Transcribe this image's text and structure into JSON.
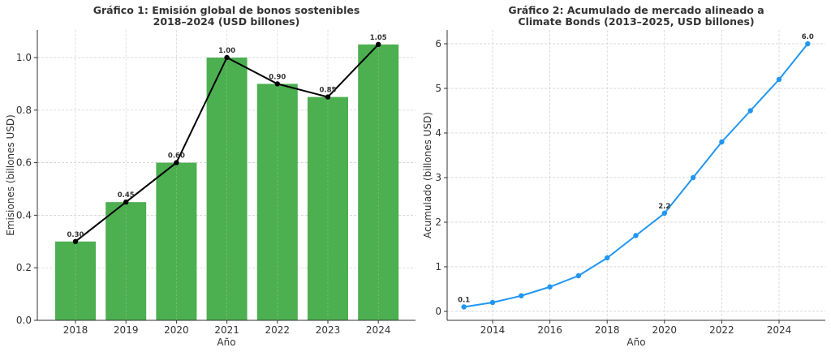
{
  "chart_data": [
    {
      "type": "bar",
      "title": "Gráfico 1: Emisión global de bonos sostenibles\n2018–2024 (USD billones)",
      "title_lines": [
        "Gráfico 1: Emisión global de bonos sostenibles",
        "2018–2024 (USD billones)"
      ],
      "xlabel": "Año",
      "ylabel": "Emisiones (billones USD)",
      "categories": [
        "2018",
        "2019",
        "2020",
        "2021",
        "2022",
        "2023",
        "2024"
      ],
      "values": [
        0.3,
        0.45,
        0.6,
        1.0,
        0.9,
        0.85,
        1.05
      ],
      "data_labels": [
        "0.30",
        "0.45",
        "0.60",
        "1.00",
        "0.90",
        "0.85",
        "1.05"
      ],
      "overlay_line": {
        "type": "line",
        "values": [
          0.3,
          0.45,
          0.6,
          1.0,
          0.9,
          0.85,
          1.05
        ],
        "color": "#000000",
        "marker": "circle"
      },
      "ylim": [
        0,
        1.1
      ],
      "yticks": [
        "0.0",
        "0.2",
        "0.4",
        "0.6",
        "0.8",
        "1.0"
      ],
      "grid": true,
      "bar_color": "#4caf50"
    },
    {
      "type": "line",
      "title": "Gráfico 2: Acumulado de mercado alineado a\nClimate Bonds (2013–2025, USD billones)",
      "title_lines": [
        "Gráfico 2: Acumulado de mercado alineado a",
        "Climate Bonds (2013–2025, USD billones)"
      ],
      "xlabel": "Año",
      "ylabel": "Acumulado (billones USD)",
      "x": [
        2013,
        2014,
        2015,
        2016,
        2017,
        2018,
        2019,
        2020,
        2021,
        2022,
        2023,
        2024,
        2025
      ],
      "values": [
        0.1,
        0.2,
        0.35,
        0.55,
        0.8,
        1.2,
        1.7,
        2.2,
        3.0,
        3.8,
        4.5,
        5.2,
        6.0
      ],
      "annotations": [
        {
          "x": 2013,
          "label": "0.1"
        },
        {
          "x": 2020,
          "label": "2.2"
        },
        {
          "x": 2025,
          "label": "6.0"
        }
      ],
      "xticks": [
        "2014",
        "2016",
        "2018",
        "2020",
        "2022",
        "2024"
      ],
      "yticks": [
        "0",
        "1",
        "2",
        "3",
        "4",
        "5",
        "6"
      ],
      "ylim": [
        -0.2,
        6.3
      ],
      "xlim": [
        2012.4,
        2025.6
      ],
      "grid": true,
      "line_color": "#2196f3",
      "marker": "circle"
    }
  ]
}
